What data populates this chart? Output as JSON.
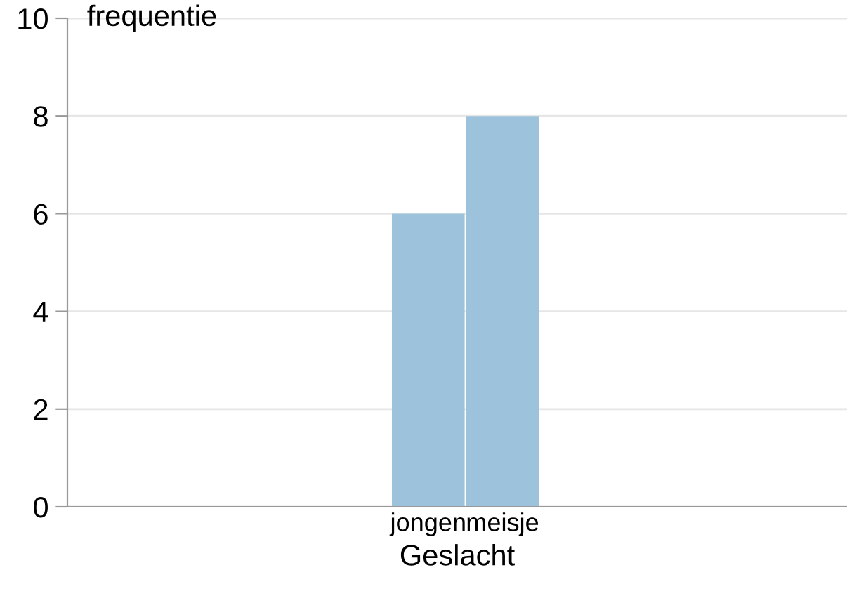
{
  "chart_data": {
    "type": "bar",
    "xlabel": "Geslacht",
    "ylabel": "frequentie",
    "categories": [
      "jongen",
      "meisje"
    ],
    "values": [
      6,
      8
    ],
    "color": "#9cc2dc",
    "ylim": [
      0,
      10
    ],
    "yticks": [
      0,
      2,
      4,
      6,
      8,
      10
    ],
    "grid": "y"
  }
}
